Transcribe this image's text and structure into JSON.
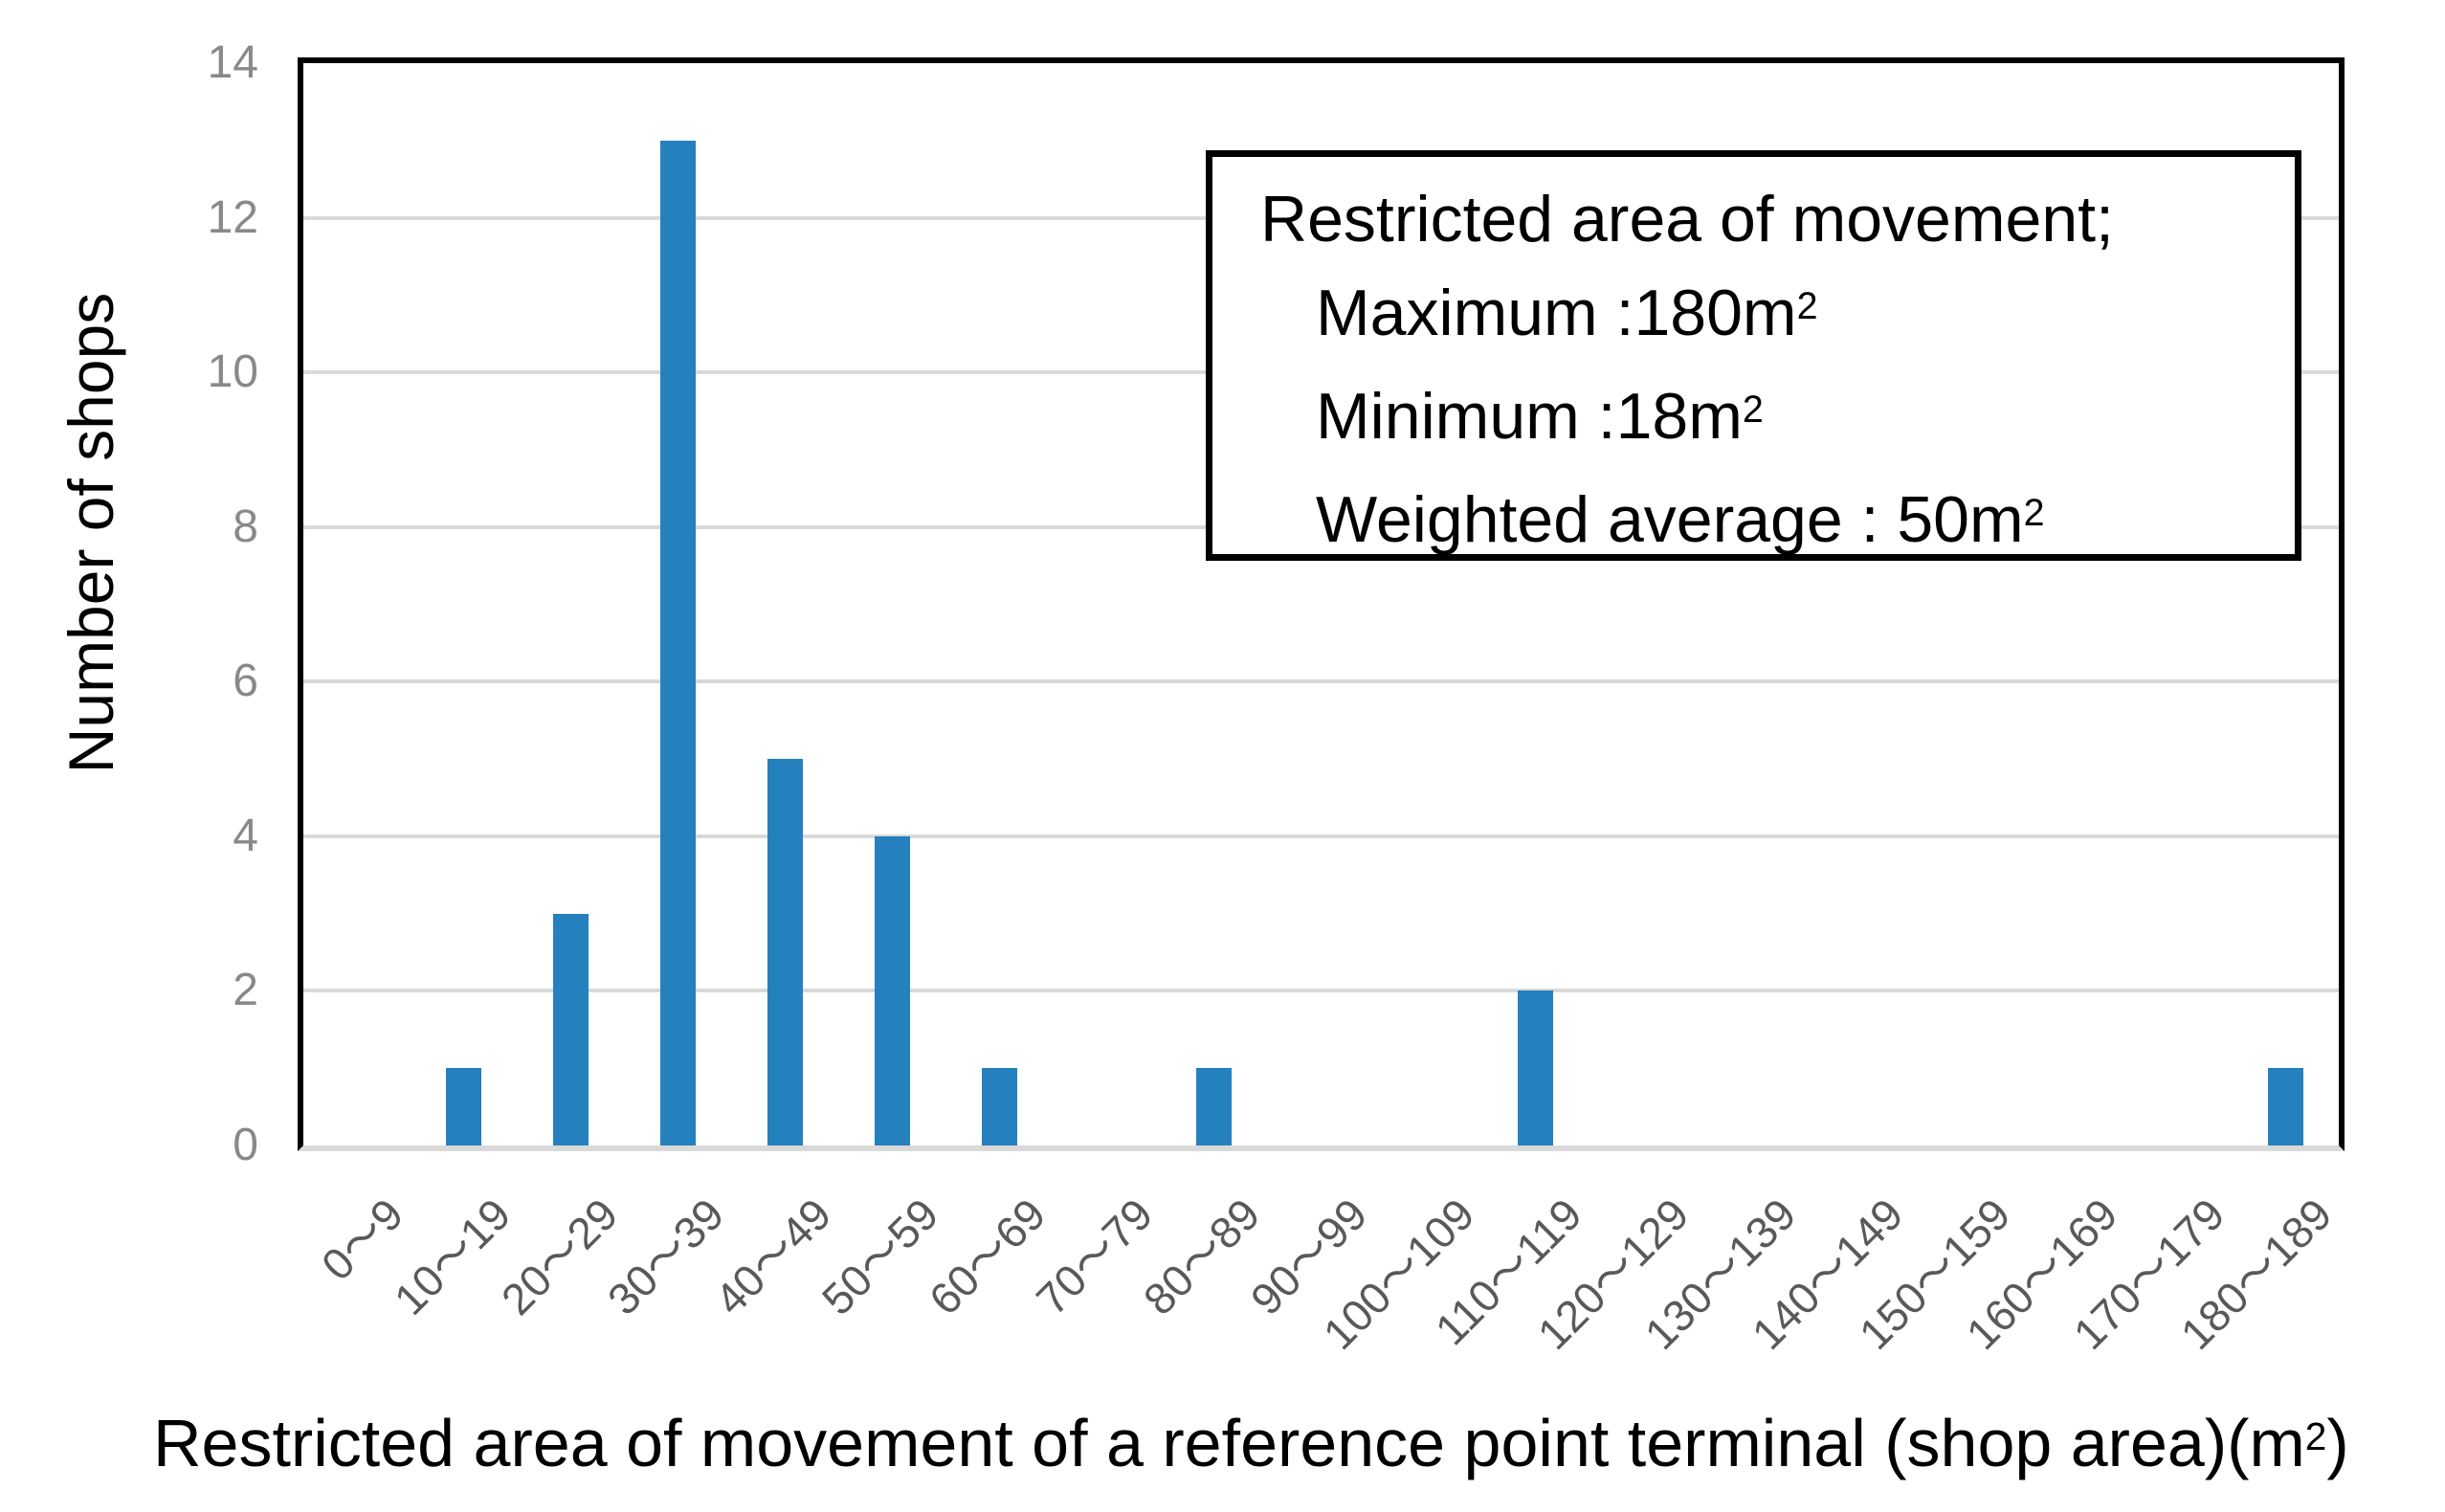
{
  "chart_data": {
    "type": "bar",
    "title": "",
    "categories": [
      "0～9",
      "10～19",
      "20～29",
      "30～39",
      "40～49",
      "50～59",
      "60～69",
      "70～79",
      "80～89",
      "90～99",
      "100～109",
      "110～119",
      "120～129",
      "130～139",
      "140～149",
      "150～159",
      "160～169",
      "170～179",
      "180～189"
    ],
    "values": [
      0,
      1,
      3,
      13,
      5,
      4,
      1,
      0,
      1,
      0,
      0,
      2,
      0,
      0,
      0,
      0,
      0,
      0,
      1
    ],
    "xlabel": "Restricted area of movement of a reference point terminal (shop area)(m²)",
    "ylabel": "Number of shops",
    "ylim": [
      0,
      14
    ],
    "ytick_step": 2,
    "yticks": [
      0,
      2,
      4,
      6,
      8,
      10,
      12,
      14
    ],
    "grid": "horizontal",
    "legend_position": "none",
    "annotation": {
      "lines": [
        "Restricted area of movement;",
        "Maximum :180m²",
        "Minimum :18m²",
        "Weighted average : 50m²"
      ]
    }
  },
  "colors": {
    "bar": "#2580BE",
    "gridline": "#D9D9D9",
    "axis_line": "#D9D9D9",
    "frame": "#000000",
    "y_tick_text": "#898989",
    "x_tick_text": "#595959",
    "title_text": "#000000",
    "background": "#FFFFFF"
  }
}
